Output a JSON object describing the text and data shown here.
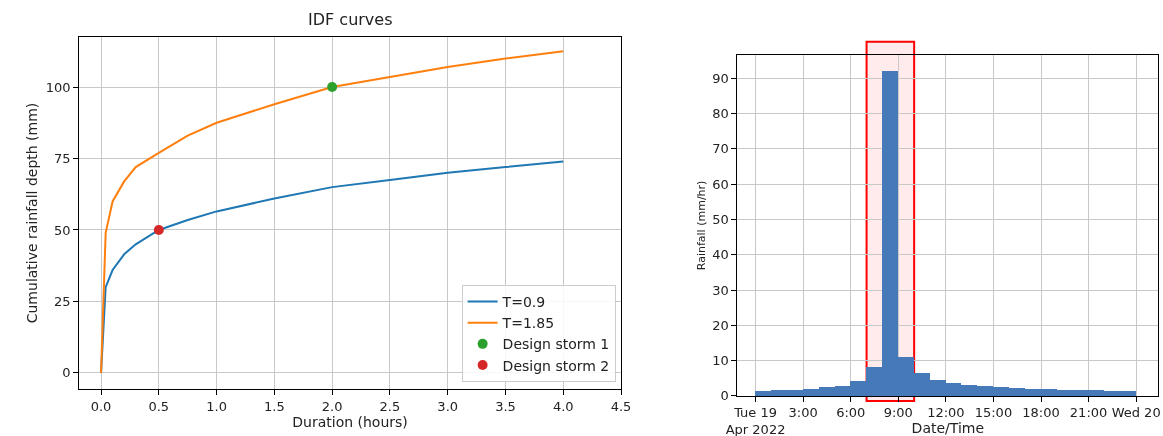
{
  "chart_data": [
    {
      "type": "line",
      "title": "IDF curves",
      "xlabel": "Duration (hours)",
      "ylabel": "Cumulative rainfall depth (mm)",
      "xlim": [
        -0.19,
        4.5
      ],
      "xticks": [
        {
          "value": 0,
          "label": "0.0"
        },
        0.5,
        {
          "value": 1,
          "label": "1.0"
        },
        1.5,
        {
          "value": 2,
          "label": "2.0"
        },
        2.5,
        {
          "value": 3,
          "label": "3.0"
        },
        3.5,
        {
          "value": 4,
          "label": "4.0"
        },
        4.5
      ],
      "ylim": [
        -5.6,
        117.5
      ],
      "yticks": [
        0,
        25,
        50,
        75,
        100
      ],
      "grid": true,
      "legend": "bottom right",
      "series": [
        {
          "name": "T=0.9",
          "color": "#1f77b4",
          "type": "line",
          "x": [
            0,
            0.04,
            0.1,
            0.2,
            0.3,
            0.5,
            0.75,
            1,
            1.5,
            2,
            2.5,
            3,
            3.5,
            4
          ],
          "values": [
            0,
            30,
            36,
            41.5,
            45,
            50,
            53.5,
            56.5,
            61,
            65,
            67.5,
            70,
            72,
            74
          ]
        },
        {
          "name": "T=1.85",
          "color": "#ff7f0e",
          "type": "line",
          "x": [
            0,
            0.04,
            0.1,
            0.2,
            0.3,
            0.5,
            0.75,
            1,
            1.5,
            2,
            2.5,
            3,
            3.5,
            4
          ],
          "values": [
            0,
            49,
            60,
            67,
            72,
            77,
            83,
            87.5,
            94,
            100,
            103.5,
            107,
            110,
            112.5
          ]
        },
        {
          "name": "Design storm 1",
          "color": "#2ca02c",
          "type": "scatter",
          "marker": "circle",
          "x": [
            2
          ],
          "values": [
            100
          ]
        },
        {
          "name": "Design storm 2",
          "color": "#d62728",
          "type": "scatter",
          "marker": "circle",
          "x": [
            0.5
          ],
          "values": [
            50
          ]
        }
      ]
    },
    {
      "type": "histogram",
      "xlabel": "Date/Time",
      "ylabel": "Rainfall (mm/hr)",
      "color": "#4579b8",
      "bins": [
        0,
        1,
        2,
        3,
        4,
        5,
        6,
        7,
        8,
        9,
        10,
        11,
        12,
        13,
        14,
        15,
        16,
        17,
        18,
        19,
        20,
        21,
        22,
        23,
        24
      ],
      "values": [
        1.4,
        1.8,
        1.7,
        1.9,
        2.5,
        2.9,
        4.2,
        8.2,
        92.1,
        11.1,
        6.4,
        4.5,
        3.8,
        3.2,
        2.7,
        2.5,
        2.2,
        1.9,
        1.9,
        1.6,
        1.6,
        1.6,
        1.4,
        1.4
      ],
      "xlim": [
        -1.15,
        25.4
      ],
      "xticks": [
        {
          "value": 0,
          "label": "Tue 19\nApr 2022"
        },
        {
          "value": 3,
          "label": "3:00"
        },
        {
          "value": 6,
          "label": "6:00"
        },
        {
          "value": 9,
          "label": "9:00"
        },
        {
          "value": 12,
          "label": "12:00"
        },
        {
          "value": 15,
          "label": "15:00"
        },
        {
          "value": 18,
          "label": "18:00"
        },
        {
          "value": 21,
          "label": "21:00"
        },
        {
          "value": 24,
          "label": "Wed 20"
        }
      ],
      "ylim": [
        0,
        96.6
      ],
      "yticks": [
        0,
        10,
        20,
        30,
        40,
        50,
        60,
        70,
        80,
        90
      ],
      "grid": true,
      "bands": [
        {
          "axis": "x",
          "from": 7,
          "to": 10,
          "color": "#ff0000"
        }
      ]
    }
  ]
}
